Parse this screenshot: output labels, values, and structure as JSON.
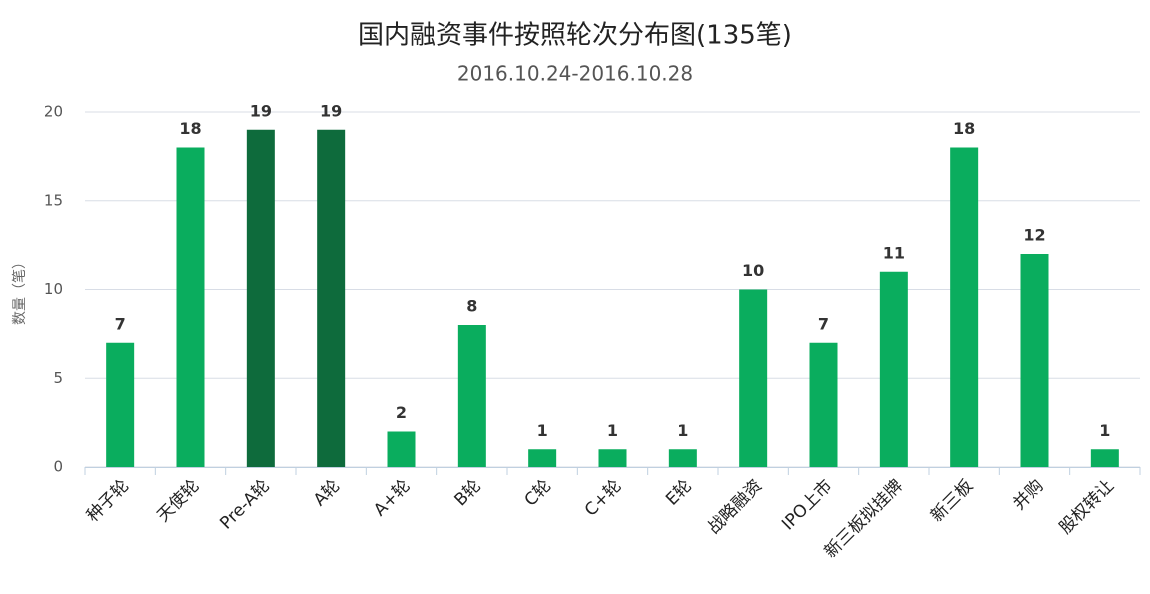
{
  "chart_data": {
    "type": "bar",
    "title": "国内融资事件按照轮次分布图(135笔)",
    "subtitle": "2016.10.24-2016.10.28",
    "y_label": "数量（笔）",
    "categories": [
      "种子轮",
      "天使轮",
      "Pre-A轮",
      "A轮",
      "A+轮",
      "B轮",
      "C轮",
      "C+轮",
      "E轮",
      "战略融资",
      "IPO上市",
      "新三板拟挂牌",
      "新三板",
      "并购",
      "股权转让"
    ],
    "values": [
      7,
      18,
      19,
      19,
      2,
      8,
      1,
      1,
      1,
      10,
      7,
      11,
      18,
      12,
      1
    ],
    "colors": [
      "#0aad5e",
      "#0aad5e",
      "#0e6b3c",
      "#0e6b3c",
      "#0aad5e",
      "#0aad5e",
      "#0aad5e",
      "#0aad5e",
      "#0aad5e",
      "#0aad5e",
      "#0aad5e",
      "#0aad5e",
      "#0aad5e",
      "#0aad5e",
      "#0aad5e"
    ],
    "ylim": [
      0,
      20
    ],
    "yticks": [
      0,
      5,
      10,
      15,
      20
    ],
    "grid": true
  }
}
